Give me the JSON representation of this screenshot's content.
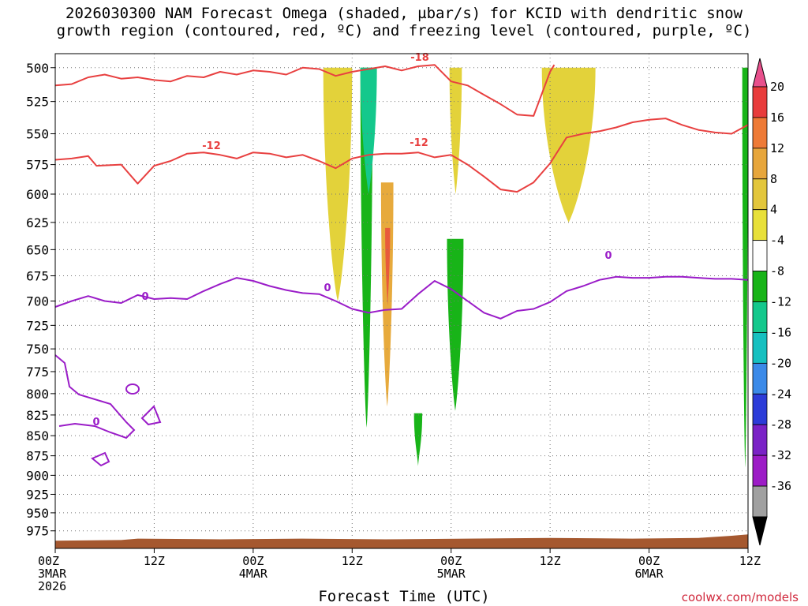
{
  "chart_data": {
    "type": "heatmap",
    "title_line1": "2026030300 NAM Forecast Omega (shaded, µbar/s) for KCID with dendritic snow",
    "title_line2": "growth region (contoured, red, ºC) and freezing level (contoured, purple, ºC)",
    "xlabel": "Forecast Time (UTC)",
    "credit": "coolwx.com/models",
    "y_ticks": [
      500,
      525,
      550,
      575,
      600,
      625,
      650,
      675,
      700,
      725,
      750,
      775,
      800,
      825,
      850,
      875,
      900,
      925,
      950,
      975
    ],
    "y_unit": "hPa",
    "x_ticks": [
      {
        "hour": 0,
        "line1": "00Z",
        "line2": "3MAR",
        "line3": "2026"
      },
      {
        "hour": 12,
        "line1": "12Z",
        "line2": "",
        "line3": ""
      },
      {
        "hour": 24,
        "line1": "00Z",
        "line2": "4MAR",
        "line3": ""
      },
      {
        "hour": 36,
        "line1": "12Z",
        "line2": "",
        "line3": ""
      },
      {
        "hour": 48,
        "line1": "00Z",
        "line2": "5MAR",
        "line3": ""
      },
      {
        "hour": 60,
        "line1": "12Z",
        "line2": "",
        "line3": ""
      },
      {
        "hour": 72,
        "line1": "00Z",
        "line2": "6MAR",
        "line3": ""
      },
      {
        "hour": 84,
        "line1": "12Z",
        "line2": "",
        "line3": ""
      }
    ],
    "x_range_hours": [
      0,
      84
    ],
    "colorbar": {
      "labels": [
        "20",
        "16",
        "12",
        "8",
        "4",
        "-4",
        "-8",
        "-12",
        "-16",
        "-20",
        "-24",
        "-28",
        "-32",
        "-36"
      ],
      "colors": [
        "#e8508c",
        "#e83c3c",
        "#ee7a36",
        "#e7a63c",
        "#e3c63c",
        "#e8e03a",
        "#ffffff",
        "#18b418",
        "#14c88c",
        "#16c0c0",
        "#3b8ae8",
        "#2c3cd8",
        "#7a22c6",
        "#9c1cc6",
        "#a0a0a0",
        "#000000"
      ]
    },
    "contour_labels": {
      "red_minus18": "-18",
      "red_minus12_a": "-12",
      "red_minus12_b": "-12",
      "purple_zero_a": "0",
      "purple_zero_b": "0",
      "purple_zero_c": "0",
      "purple_zero_d": "0"
    },
    "red_minus12": [
      [
        0,
        571
      ],
      [
        2,
        570
      ],
      [
        4,
        568
      ],
      [
        5,
        576
      ],
      [
        8,
        575
      ],
      [
        10,
        591
      ],
      [
        12,
        576
      ],
      [
        14,
        572
      ],
      [
        16,
        566
      ],
      [
        18,
        565
      ],
      [
        20,
        567
      ],
      [
        22,
        570
      ],
      [
        24,
        565
      ],
      [
        26,
        566
      ],
      [
        28,
        569
      ],
      [
        30,
        567
      ],
      [
        32,
        572
      ],
      [
        34,
        578
      ],
      [
        36,
        570
      ],
      [
        38,
        567
      ],
      [
        40,
        566
      ],
      [
        42,
        566
      ],
      [
        44,
        565
      ],
      [
        46,
        569
      ],
      [
        48,
        567
      ],
      [
        50,
        575
      ],
      [
        52,
        585
      ],
      [
        54,
        596
      ],
      [
        56,
        598
      ],
      [
        58,
        590
      ],
      [
        60,
        574
      ],
      [
        62,
        553
      ],
      [
        64,
        550
      ],
      [
        66,
        548
      ],
      [
        68,
        545
      ],
      [
        70,
        541
      ],
      [
        72,
        539
      ],
      [
        74,
        538
      ],
      [
        76,
        543
      ],
      [
        78,
        547
      ],
      [
        80,
        549
      ],
      [
        82,
        550
      ],
      [
        84,
        543
      ]
    ],
    "red_minus18": [
      [
        0,
        513
      ],
      [
        2,
        512
      ],
      [
        4,
        507
      ],
      [
        6,
        505
      ],
      [
        8,
        508
      ],
      [
        10,
        507
      ],
      [
        12,
        509
      ],
      [
        14,
        510
      ],
      [
        16,
        506
      ],
      [
        18,
        507
      ],
      [
        20,
        503
      ],
      [
        22,
        505
      ],
      [
        24,
        502
      ],
      [
        26,
        503
      ],
      [
        28,
        505
      ],
      [
        30,
        500
      ],
      [
        32,
        501
      ],
      [
        34,
        506
      ],
      [
        36,
        503
      ],
      [
        38,
        501
      ],
      [
        40,
        499
      ],
      [
        42,
        502
      ],
      [
        44,
        499
      ],
      [
        46,
        498
      ],
      [
        48,
        510
      ],
      [
        50,
        513
      ],
      [
        52,
        520
      ],
      [
        54,
        527
      ],
      [
        56,
        535
      ],
      [
        58,
        536
      ],
      [
        60,
        503
      ],
      [
        60.5,
        498
      ]
    ],
    "purple_zero": [
      [
        0,
        706
      ],
      [
        2,
        700
      ],
      [
        4,
        695
      ],
      [
        6,
        700
      ],
      [
        8,
        702
      ],
      [
        10,
        694
      ],
      [
        12,
        698
      ],
      [
        14,
        697
      ],
      [
        16,
        698
      ],
      [
        18,
        690
      ],
      [
        20,
        683
      ],
      [
        22,
        677
      ],
      [
        24,
        680
      ],
      [
        26,
        685
      ],
      [
        28,
        689
      ],
      [
        30,
        692
      ],
      [
        32,
        693
      ],
      [
        34,
        700
      ],
      [
        36,
        708
      ],
      [
        38,
        712
      ],
      [
        40,
        709
      ],
      [
        42,
        708
      ],
      [
        44,
        693
      ],
      [
        46,
        680
      ],
      [
        48,
        688
      ],
      [
        50,
        700
      ],
      [
        52,
        712
      ],
      [
        54,
        718
      ],
      [
        56,
        710
      ],
      [
        58,
        708
      ],
      [
        60,
        701
      ],
      [
        62,
        690
      ],
      [
        64,
        685
      ],
      [
        66,
        679
      ],
      [
        68,
        676
      ],
      [
        70,
        677
      ],
      [
        72,
        677
      ],
      [
        74,
        676
      ],
      [
        76,
        676
      ],
      [
        78,
        677
      ],
      [
        80,
        678
      ],
      [
        82,
        678
      ],
      [
        84,
        679
      ]
    ],
    "omega_regions": [
      {
        "sign": "negative",
        "level": "-4",
        "hour_start": 37,
        "hour_end": 38.5,
        "p_top": 500,
        "p_bottom": 840
      },
      {
        "sign": "negative",
        "level": "-8",
        "hour_start": 37,
        "hour_end": 39,
        "p_top": 500,
        "p_bottom": 600
      },
      {
        "sign": "positive",
        "level": "8",
        "hour_start": 39.5,
        "hour_end": 41,
        "p_top": 590,
        "p_bottom": 815
      },
      {
        "sign": "positive",
        "level": "16",
        "hour_start": 40,
        "hour_end": 40.6,
        "p_top": 630,
        "p_bottom": 705
      },
      {
        "sign": "positive",
        "level": "4",
        "hour_start": 32.5,
        "hour_end": 36,
        "p_top": 500,
        "p_bottom": 700
      },
      {
        "sign": "negative",
        "level": "-4",
        "hour_start": 47.5,
        "hour_end": 49.5,
        "p_top": 640,
        "p_bottom": 820
      },
      {
        "sign": "negative",
        "level": "-4",
        "hour_start": 43.5,
        "hour_end": 44.5,
        "p_top": 823,
        "p_bottom": 888
      },
      {
        "sign": "positive",
        "level": "4",
        "hour_start": 59,
        "hour_end": 65.5,
        "p_top": 500,
        "p_bottom": 625
      },
      {
        "sign": "positive",
        "level": "4",
        "hour_start": 47.8,
        "hour_end": 49.3,
        "p_top": 500,
        "p_bottom": 600
      },
      {
        "sign": "negative",
        "level": "-4",
        "hour_start": 83.3,
        "hour_end": 84,
        "p_top": 500,
        "p_bottom": 890
      }
    ]
  }
}
